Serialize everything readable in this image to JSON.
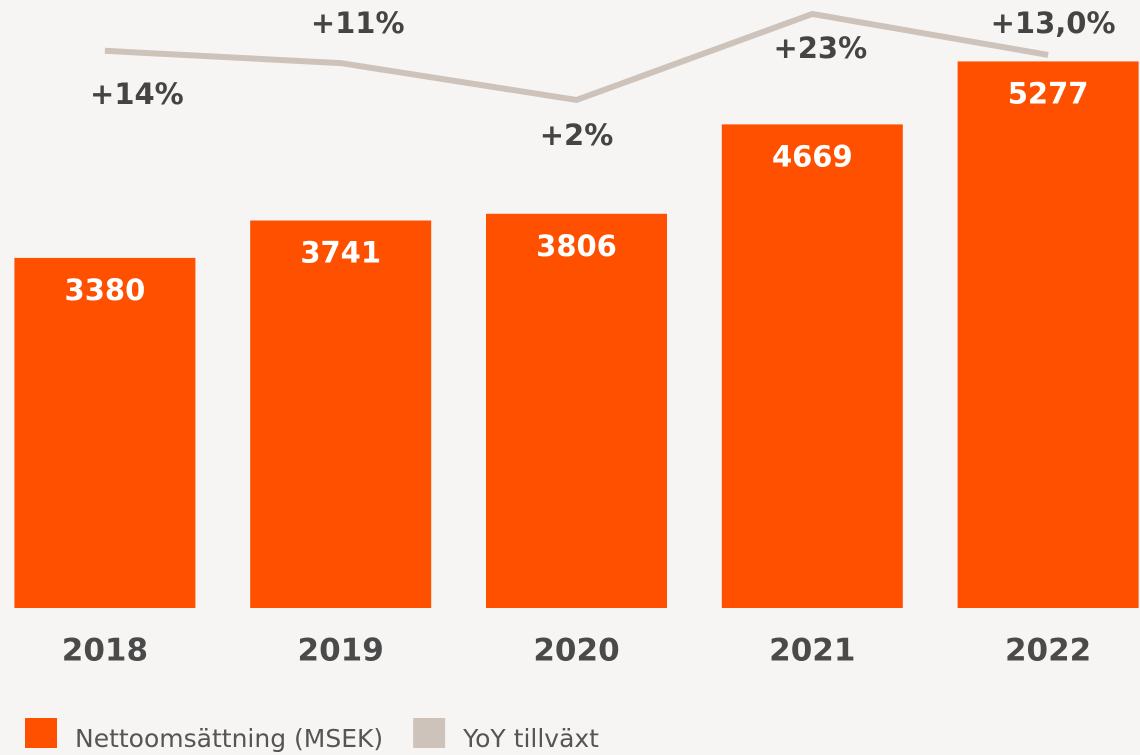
{
  "chart_data": {
    "type": "bar_line",
    "categories": [
      "2018",
      "2019",
      "2020",
      "2021",
      "2022"
    ],
    "series": [
      {
        "name": "Nettoomsättning (MSEK)",
        "color": "#ff5000",
        "type": "bar",
        "values": [
          3380,
          3741,
          3806,
          4669,
          5277
        ]
      },
      {
        "name": "YoY tillväxt",
        "color": "#cdc3bb",
        "type": "line",
        "axis": "y2",
        "values": [
          14,
          11,
          2,
          23,
          13.0
        ],
        "value_labels": [
          "+14%",
          "+11%",
          "+2%",
          "+23%",
          "+13,0%"
        ]
      }
    ],
    "ylim": [
      0,
      5870
    ],
    "y2lim": [
      -122,
      26.4
    ],
    "legend": "bottom-left"
  }
}
